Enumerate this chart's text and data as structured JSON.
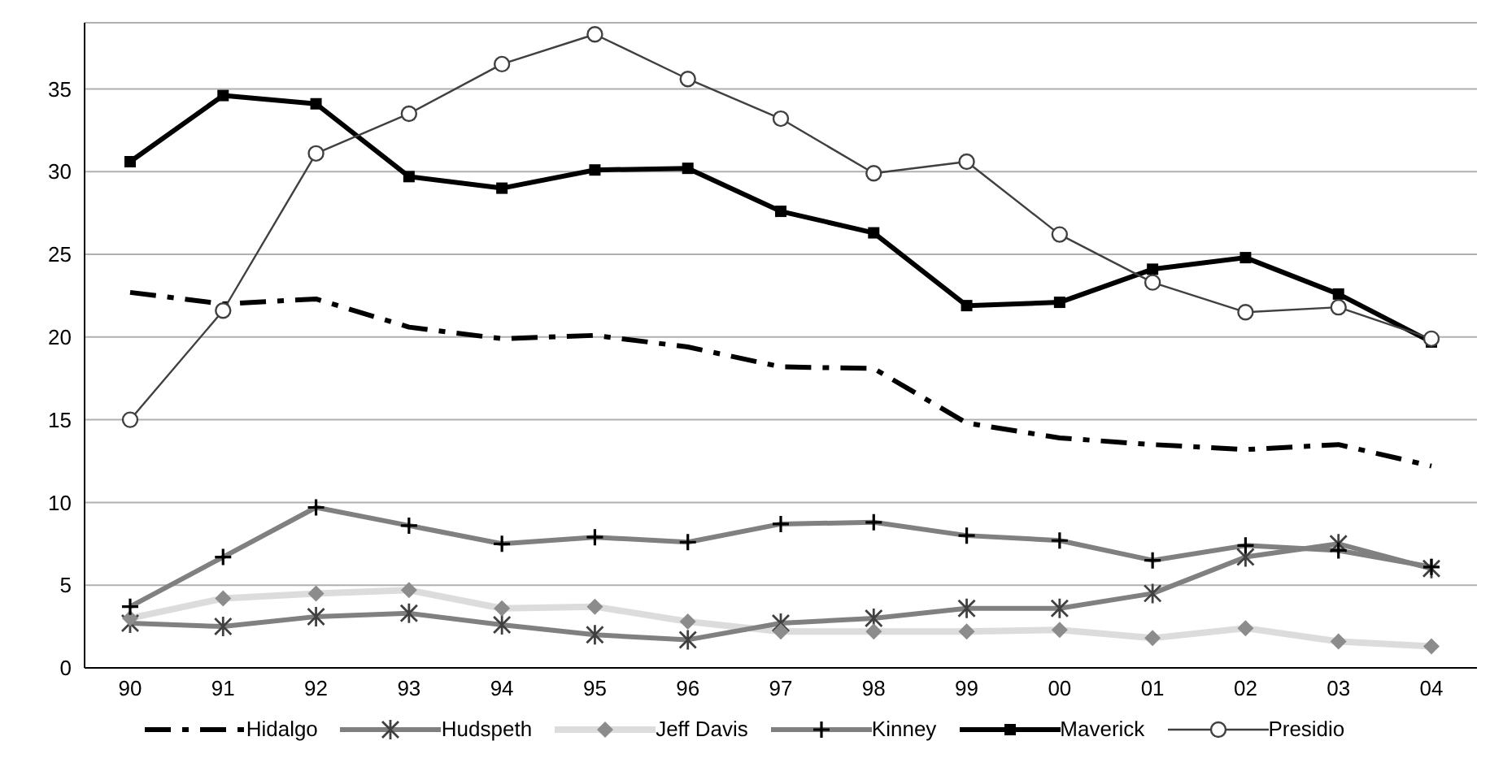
{
  "chart_data": {
    "type": "line",
    "categories": [
      "90",
      "91",
      "92",
      "93",
      "94",
      "95",
      "96",
      "97",
      "98",
      "99",
      "00",
      "01",
      "02",
      "03",
      "04"
    ],
    "series": [
      {
        "name": "Hidalgo",
        "color": "#000000",
        "line_style": "dashed",
        "marker": "none",
        "values": [
          22.7,
          22.0,
          22.3,
          20.6,
          19.9,
          20.1,
          19.4,
          18.2,
          18.1,
          14.8,
          13.9,
          13.5,
          13.2,
          13.5,
          12.2
        ]
      },
      {
        "name": "Hudspeth",
        "color": "#808080",
        "marker": "cross",
        "values": [
          2.7,
          2.5,
          3.1,
          3.3,
          2.6,
          2.0,
          1.7,
          2.7,
          3.0,
          3.6,
          3.6,
          4.5,
          6.7,
          7.5,
          6.0
        ]
      },
      {
        "name": "Jeff Davis",
        "color": "#8c8c8c",
        "marker": "diamond",
        "values": [
          3.0,
          4.2,
          4.5,
          4.7,
          3.6,
          3.7,
          2.8,
          2.2,
          2.2,
          2.2,
          2.3,
          1.8,
          2.4,
          1.6,
          1.3
        ]
      },
      {
        "name": "Kinney",
        "color": "#808080",
        "marker": "cross",
        "values": [
          3.7,
          6.7,
          9.7,
          8.6,
          7.5,
          7.9,
          7.6,
          8.7,
          8.8,
          8.0,
          7.7,
          6.5,
          7.4,
          7.1,
          6.1
        ]
      },
      {
        "name": "Maverick",
        "color": "#000000",
        "marker": "square",
        "values": [
          30.6,
          34.6,
          34.1,
          29.7,
          29.0,
          30.1,
          30.2,
          27.6,
          26.3,
          21.9,
          22.1,
          24.1,
          24.8,
          22.6,
          19.7
        ]
      },
      {
        "name": "Presidio",
        "color": "#404040",
        "marker": "circle",
        "values": [
          15.0,
          21.6,
          31.1,
          33.5,
          36.5,
          38.3,
          35.6,
          33.2,
          29.9,
          30.6,
          26.2,
          23.3,
          21.5,
          21.8,
          19.9
        ]
      }
    ],
    "ylim": [
      0,
      39
    ],
    "yticks": [
      0,
      5,
      10,
      15,
      20,
      25,
      30,
      35
    ],
    "grid": "y",
    "legend": "bottom"
  }
}
